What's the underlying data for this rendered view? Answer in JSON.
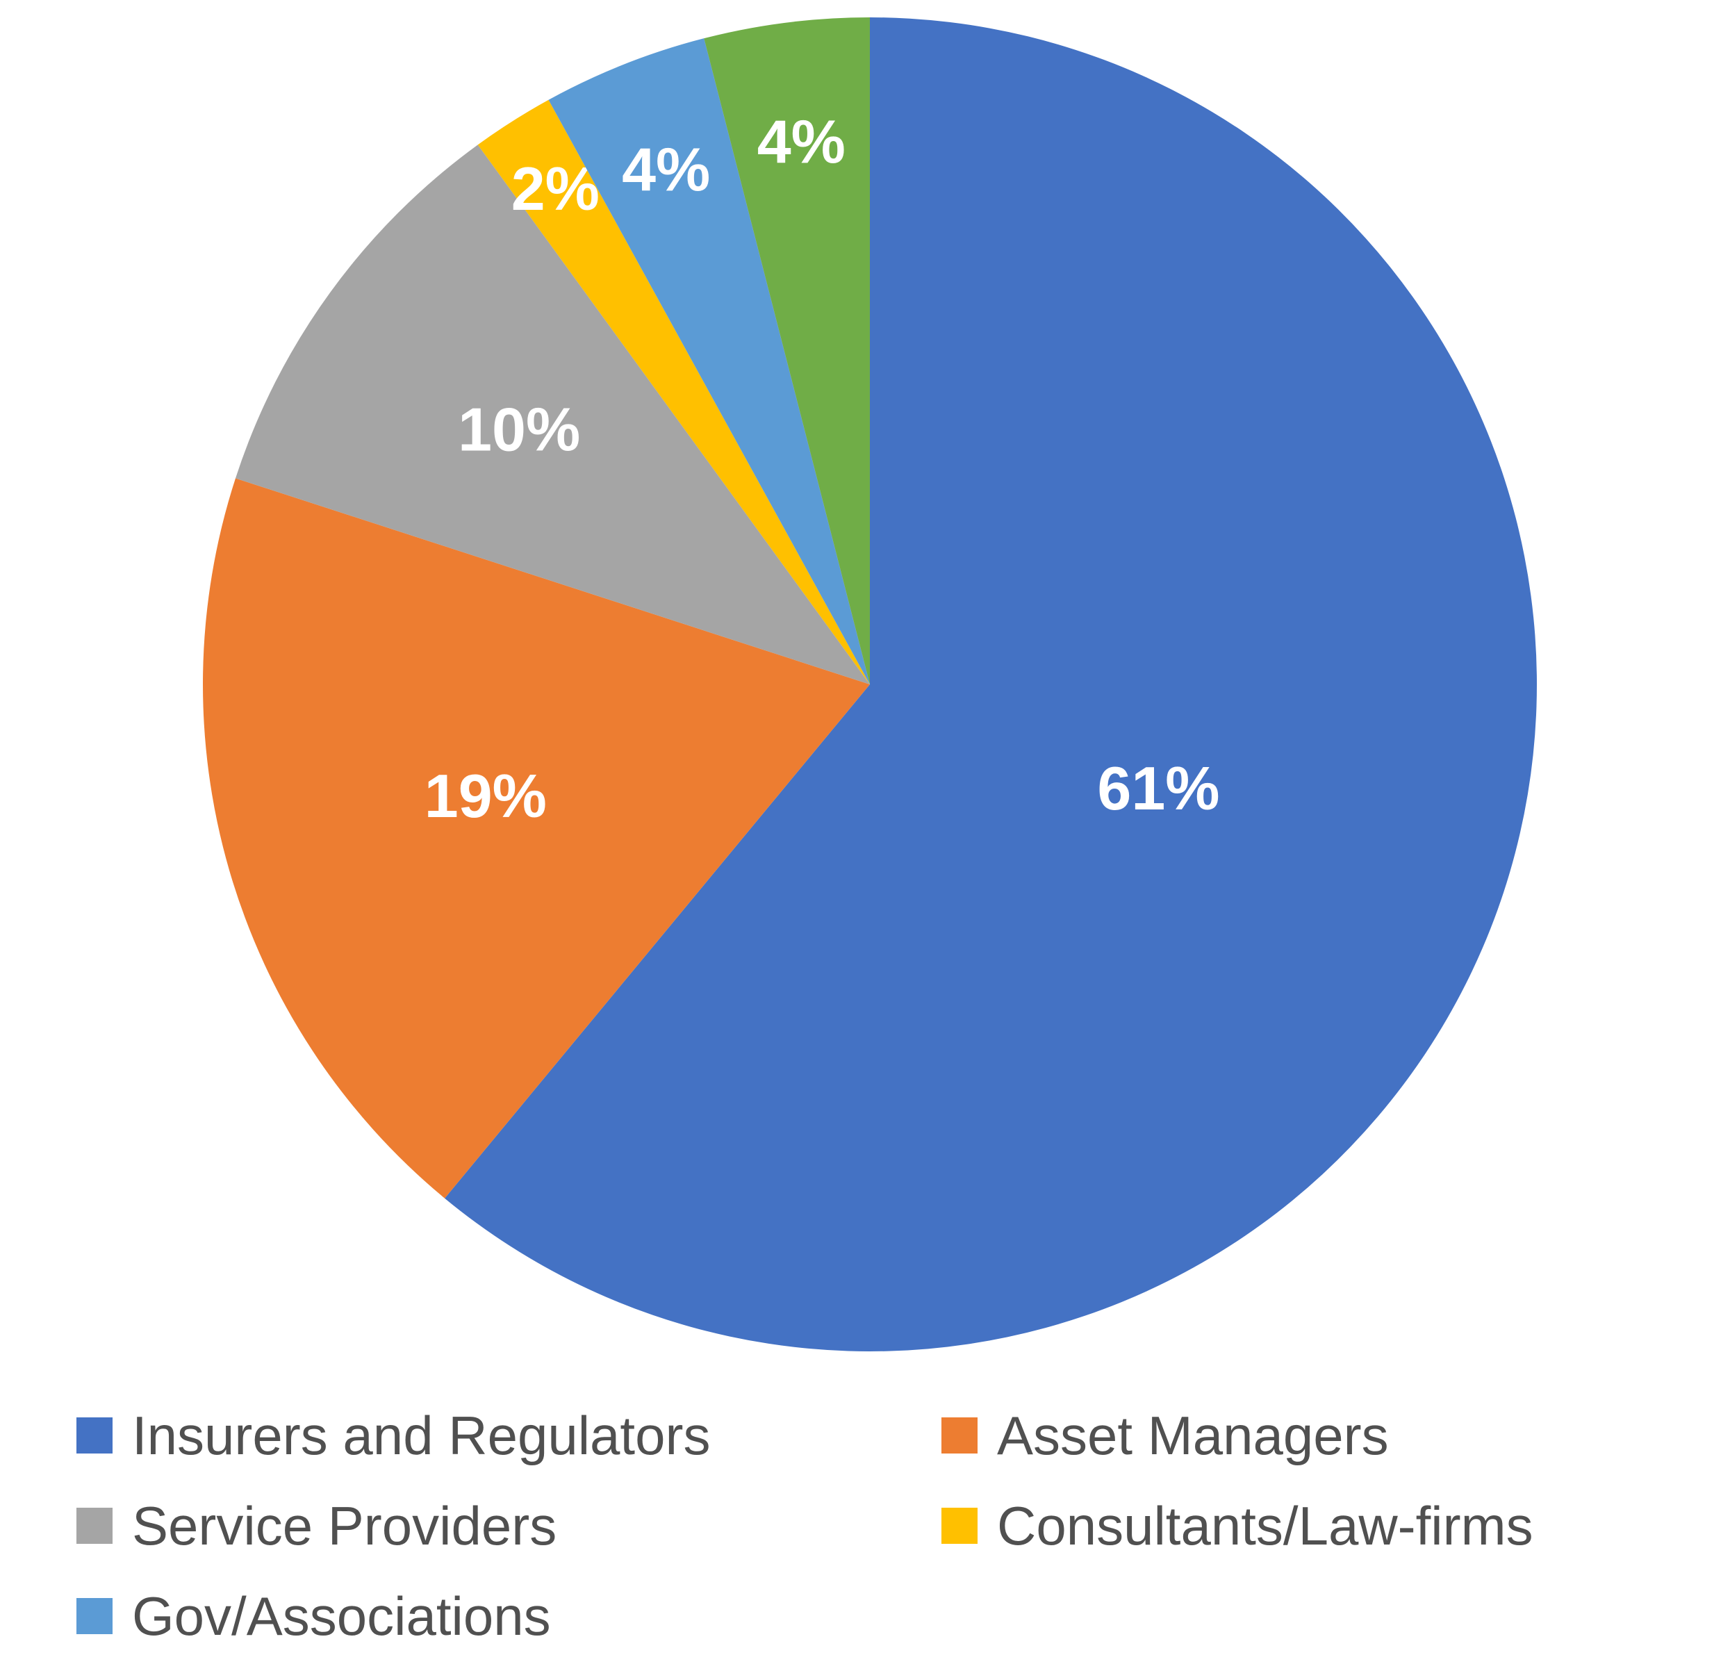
{
  "chart_data": {
    "type": "pie",
    "slices": [
      {
        "name": "Insurers and Regulators",
        "value": 61,
        "label": "61%",
        "color": "#4472C4"
      },
      {
        "name": "Asset Managers",
        "value": 19,
        "label": "19%",
        "color": "#ED7D31"
      },
      {
        "name": "Service Providers",
        "value": 10,
        "label": "10%",
        "color": "#A5A5A5"
      },
      {
        "name": "Consultants/Law-firms",
        "value": 2,
        "label": "2%",
        "color": "#FFC000"
      },
      {
        "name": "Gov/Associations",
        "value": 4,
        "label": "4%",
        "color": "#5B9BD5"
      },
      {
        "value": 4,
        "label": "4%",
        "color": "#70AD47"
      }
    ],
    "start_angle": "12 o'clock",
    "direction": "clockwise",
    "legend_position": "bottom"
  }
}
